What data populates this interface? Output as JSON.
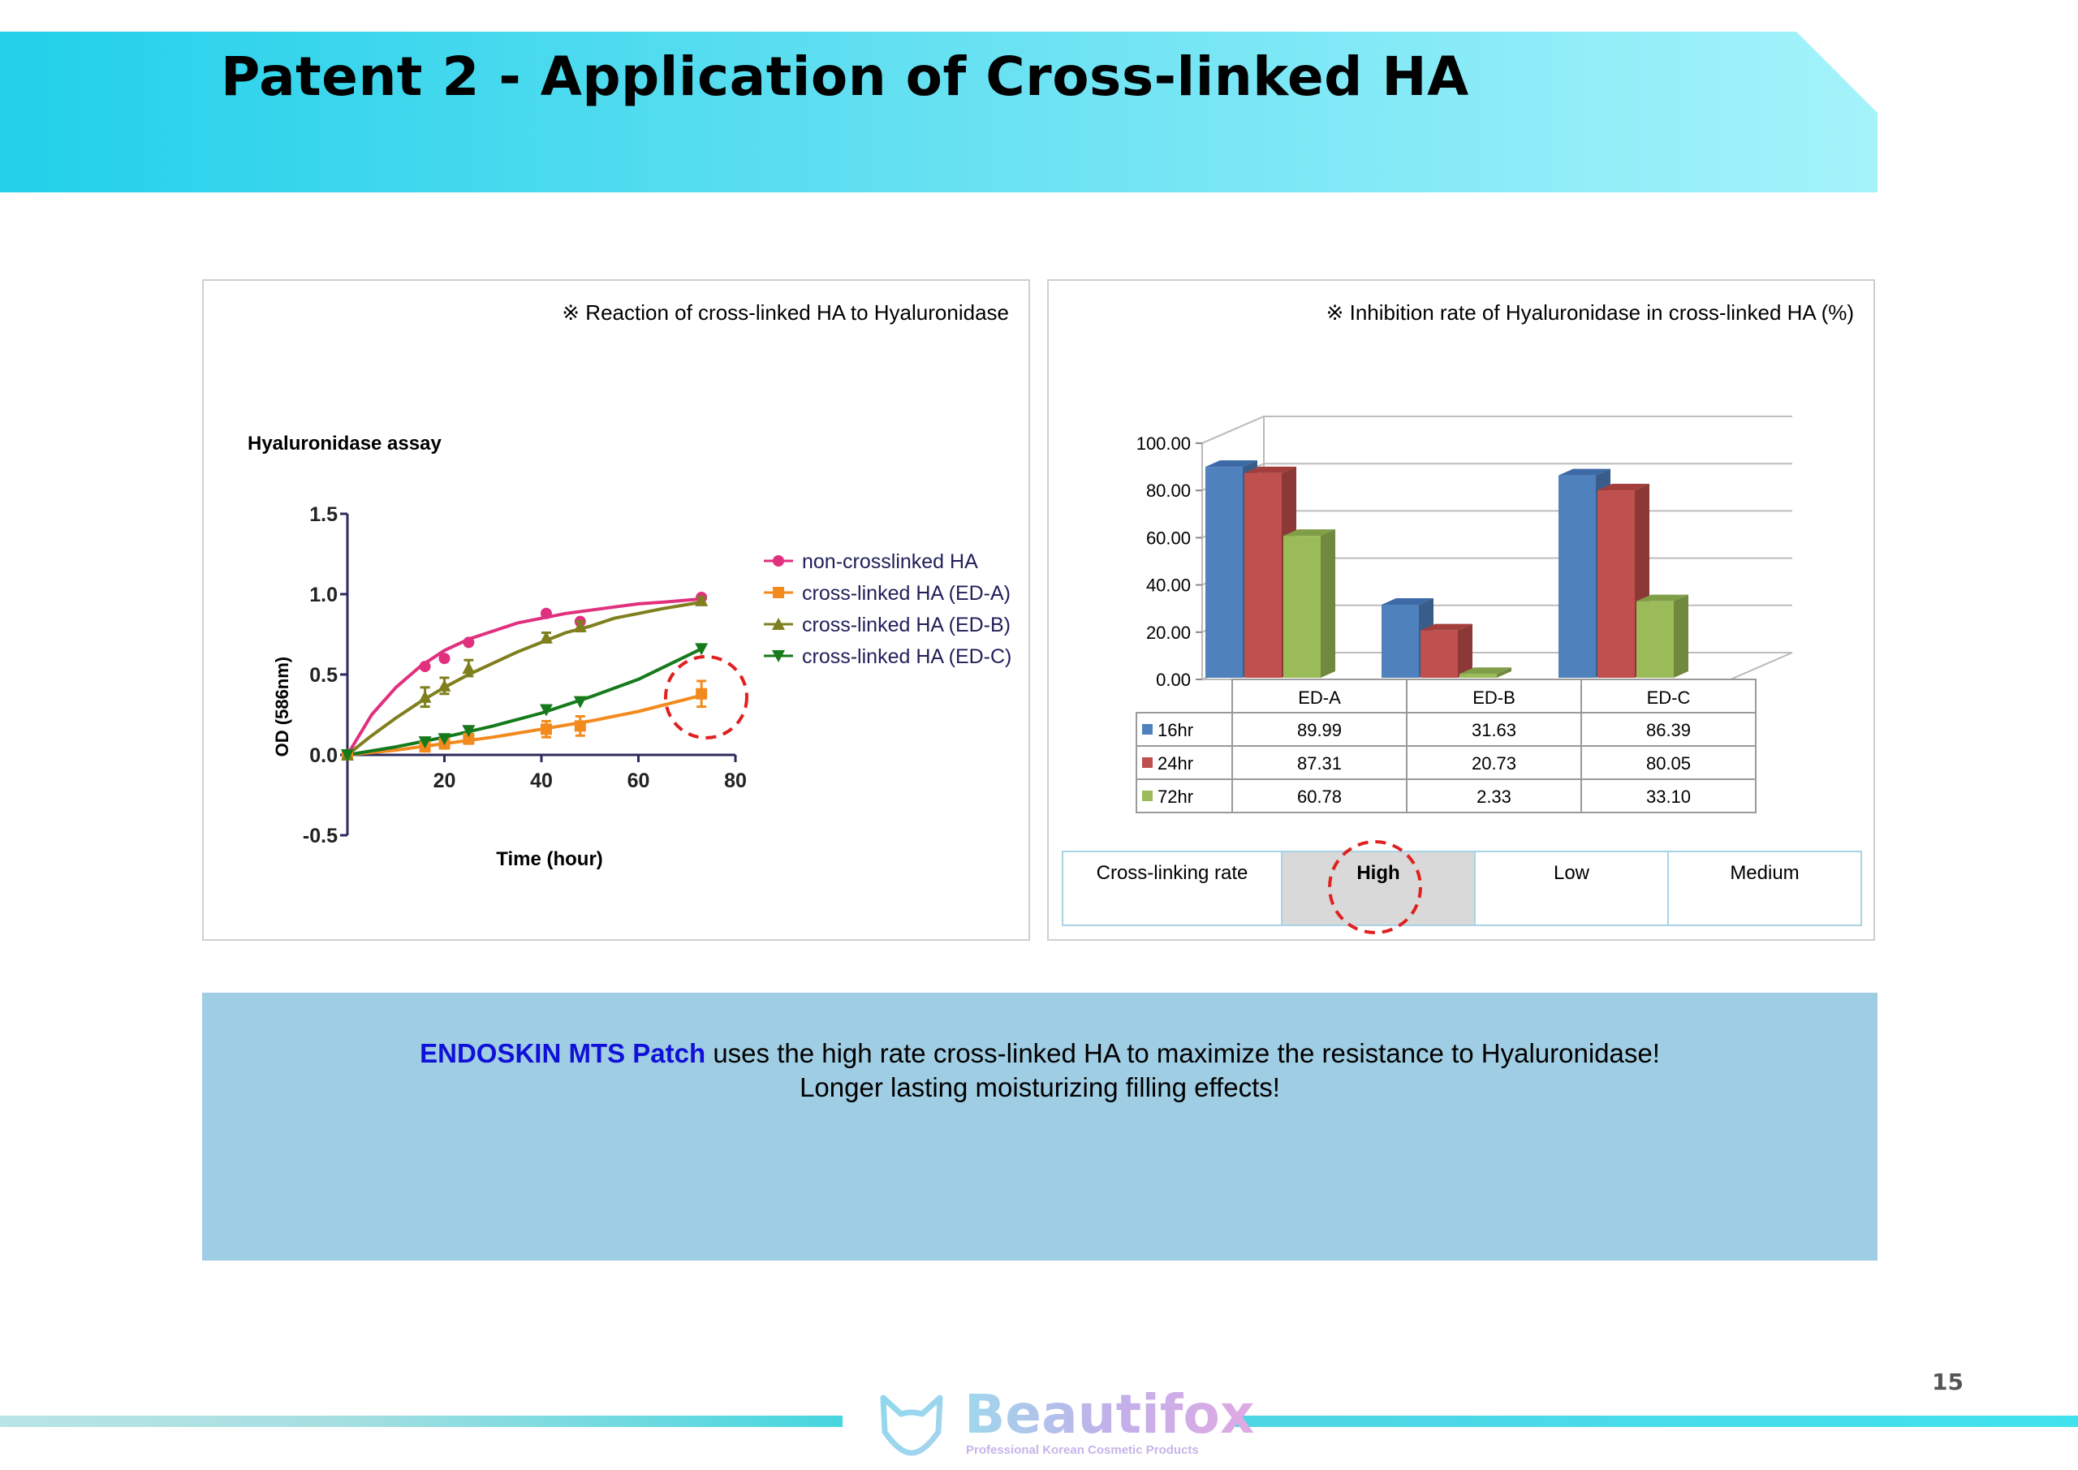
{
  "slide": {
    "title": "Patent 2 - Application of Cross-linked HA",
    "page_number": "15"
  },
  "left_panel": {
    "caption": "※ Reaction of cross-linked HA to Hyaluronidase",
    "chart_title": "Hyaluronidase assay"
  },
  "right_panel": {
    "caption": "※ Inhibition rate of Hyaluronidase in cross-linked HA (%)",
    "table": {
      "header": [
        "ED-A",
        "ED-B",
        "ED-C"
      ],
      "rows": [
        {
          "label": "16hr",
          "color": "#4f81bd",
          "values": [
            "89.99",
            "31.63",
            "86.39"
          ]
        },
        {
          "label": "24hr",
          "color": "#c0504d",
          "values": [
            "87.31",
            "20.73",
            "80.05"
          ]
        },
        {
          "label": "72hr",
          "color": "#9bbb59",
          "values": [
            "60.78",
            "2.33",
            "33.10"
          ]
        }
      ]
    },
    "crosslink": {
      "label": "Cross-linking rate",
      "values": [
        "High",
        "Low",
        "Medium"
      ],
      "highlight_color": "#d9d9d9"
    }
  },
  "info": {
    "brand": "ENDOSKIN MTS Patch",
    "line1_rest": " uses the high rate cross-linked HA to maximize the resistance to Hyaluronidase!",
    "line2": "Longer lasting moisturizing filling effects!"
  },
  "logo": {
    "name": "Beautifox",
    "tagline": "Professional Korean Cosmetic Products",
    "icon": "fox-head-icon"
  },
  "chart_data": [
    {
      "type": "line",
      "title": "Hyaluronidase assay",
      "xlabel": "Time (hour)",
      "ylabel": "OD (586nm)",
      "xlim": [
        0,
        80
      ],
      "ylim": [
        -0.5,
        1.5
      ],
      "xticks": [
        "20",
        "40",
        "60",
        "80"
      ],
      "yticks": [
        "-0.5",
        "0.0",
        "0.5",
        "1.0",
        "1.5"
      ],
      "legend_position": "right",
      "series": [
        {
          "name": "non-crosslinked HA",
          "color": "#e0307e",
          "marker": "circle",
          "x": [
            0,
            16,
            20,
            25,
            41,
            48,
            73
          ],
          "y": [
            0.0,
            0.55,
            0.6,
            0.7,
            0.88,
            0.83,
            0.98
          ],
          "curve": [
            [
              0,
              0
            ],
            [
              5,
              0.25
            ],
            [
              10,
              0.42
            ],
            [
              15,
              0.55
            ],
            [
              20,
              0.65
            ],
            [
              25,
              0.72
            ],
            [
              30,
              0.77
            ],
            [
              35,
              0.82
            ],
            [
              40,
              0.85
            ],
            [
              45,
              0.88
            ],
            [
              50,
              0.9
            ],
            [
              55,
              0.92
            ],
            [
              60,
              0.94
            ],
            [
              65,
              0.95
            ],
            [
              73,
              0.97
            ]
          ]
        },
        {
          "name": "cross-linked HA (ED-A)",
          "color": "#f28a1e",
          "marker": "square",
          "x": [
            0,
            16,
            20,
            25,
            41,
            48,
            73
          ],
          "y": [
            0.0,
            0.05,
            0.07,
            0.1,
            0.16,
            0.18,
            0.38
          ],
          "err": [
            0,
            0.02,
            0.03,
            0.03,
            0.05,
            0.06,
            0.08
          ],
          "curve": [
            [
              0,
              0
            ],
            [
              10,
              0.03
            ],
            [
              20,
              0.07
            ],
            [
              30,
              0.11
            ],
            [
              40,
              0.16
            ],
            [
              50,
              0.21
            ],
            [
              60,
              0.27
            ],
            [
              73,
              0.37
            ]
          ]
        },
        {
          "name": "cross-linked HA (ED-B)",
          "color": "#7f7f1e",
          "marker": "triangle-up",
          "x": [
            0,
            16,
            20,
            25,
            41,
            48,
            73
          ],
          "y": [
            0.0,
            0.36,
            0.43,
            0.54,
            0.73,
            0.8,
            0.96
          ],
          "err": [
            0,
            0.06,
            0.05,
            0.05,
            0.03,
            0.03,
            0.02
          ],
          "curve": [
            [
              0,
              0
            ],
            [
              5,
              0.12
            ],
            [
              10,
              0.23
            ],
            [
              15,
              0.33
            ],
            [
              20,
              0.42
            ],
            [
              25,
              0.5
            ],
            [
              30,
              0.57
            ],
            [
              35,
              0.64
            ],
            [
              40,
              0.7
            ],
            [
              45,
              0.76
            ],
            [
              50,
              0.8
            ],
            [
              55,
              0.85
            ],
            [
              60,
              0.88
            ],
            [
              65,
              0.91
            ],
            [
              73,
              0.95
            ]
          ]
        },
        {
          "name": "cross-linked HA (ED-C)",
          "color": "#157a1b",
          "marker": "triangle-down",
          "x": [
            0,
            16,
            20,
            25,
            41,
            48,
            73
          ],
          "y": [
            0.0,
            0.08,
            0.1,
            0.15,
            0.28,
            0.33,
            0.66
          ],
          "curve": [
            [
              0,
              0
            ],
            [
              10,
              0.05
            ],
            [
              20,
              0.11
            ],
            [
              30,
              0.18
            ],
            [
              40,
              0.26
            ],
            [
              50,
              0.36
            ],
            [
              60,
              0.47
            ],
            [
              73,
              0.66
            ]
          ]
        }
      ]
    },
    {
      "type": "bar",
      "categories": [
        "ED-A",
        "ED-B",
        "ED-C"
      ],
      "ylim": [
        0,
        100
      ],
      "yticks": [
        "0.00",
        "20.00",
        "40.00",
        "60.00",
        "80.00",
        "100.00"
      ],
      "series": [
        {
          "name": "16hr",
          "color": "#4f81bd",
          "values": [
            89.99,
            31.63,
            86.39
          ]
        },
        {
          "name": "24hr",
          "color": "#c0504d",
          "values": [
            87.31,
            20.73,
            80.05
          ]
        },
        {
          "name": "72hr",
          "color": "#9bbb59",
          "values": [
            60.78,
            2.33,
            33.1
          ]
        }
      ]
    }
  ]
}
